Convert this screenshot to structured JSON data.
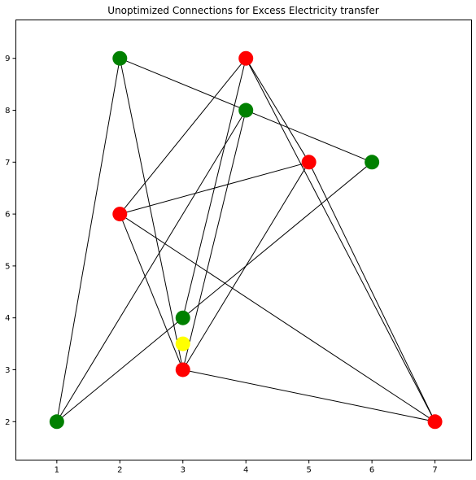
{
  "chart_data": {
    "type": "scatter",
    "title": "Unoptimized Connections for Excess Electricity transfer",
    "xlabel": "",
    "ylabel": "",
    "xlim": [
      0.35,
      7.58
    ],
    "ylim": [
      1.26,
      9.74
    ],
    "xticks": [
      1,
      2,
      3,
      4,
      5,
      6,
      7
    ],
    "yticks": [
      2,
      3,
      4,
      5,
      6,
      7,
      8,
      9
    ],
    "grid": false,
    "legend": "none",
    "colors": {
      "green": "#008000",
      "red": "#ff0000",
      "yellow": "#ffff00",
      "edge": "#000000",
      "axis": "#000000"
    },
    "nodes": [
      {
        "id": "g1",
        "x": 2,
        "y": 9,
        "color": "green"
      },
      {
        "id": "g2",
        "x": 4,
        "y": 8,
        "color": "green"
      },
      {
        "id": "g3",
        "x": 6,
        "y": 7,
        "color": "green"
      },
      {
        "id": "g4",
        "x": 3,
        "y": 4,
        "color": "green"
      },
      {
        "id": "g5",
        "x": 1,
        "y": 2,
        "color": "green"
      },
      {
        "id": "r1",
        "x": 4,
        "y": 9,
        "color": "red"
      },
      {
        "id": "r2",
        "x": 5,
        "y": 7,
        "color": "red"
      },
      {
        "id": "r3",
        "x": 2,
        "y": 6,
        "color": "red"
      },
      {
        "id": "r4",
        "x": 3,
        "y": 3,
        "color": "red"
      },
      {
        "id": "r5",
        "x": 7,
        "y": 2,
        "color": "red"
      },
      {
        "id": "y1",
        "x": 3,
        "y": 3.5,
        "color": "yellow"
      }
    ],
    "edges": [
      [
        [
          2,
          9
        ],
        [
          6,
          7
        ]
      ],
      [
        [
          2,
          9
        ],
        [
          1,
          2
        ]
      ],
      [
        [
          2,
          9
        ],
        [
          3,
          3
        ]
      ],
      [
        [
          4,
          9
        ],
        [
          2,
          6
        ]
      ],
      [
        [
          4,
          9
        ],
        [
          3,
          4
        ]
      ],
      [
        [
          4,
          9
        ],
        [
          5,
          7
        ]
      ],
      [
        [
          4,
          9
        ],
        [
          7,
          2
        ]
      ],
      [
        [
          4,
          8
        ],
        [
          1,
          2
        ]
      ],
      [
        [
          4,
          8
        ],
        [
          3,
          3
        ]
      ],
      [
        [
          2,
          6
        ],
        [
          5,
          7
        ]
      ],
      [
        [
          2,
          6
        ],
        [
          3,
          3
        ]
      ],
      [
        [
          2,
          6
        ],
        [
          7,
          2
        ]
      ],
      [
        [
          5,
          7
        ],
        [
          3,
          3
        ]
      ],
      [
        [
          5,
          7
        ],
        [
          7,
          2
        ]
      ],
      [
        [
          6,
          7
        ],
        [
          1,
          2
        ]
      ],
      [
        [
          3,
          3
        ],
        [
          7,
          2
        ]
      ]
    ]
  }
}
